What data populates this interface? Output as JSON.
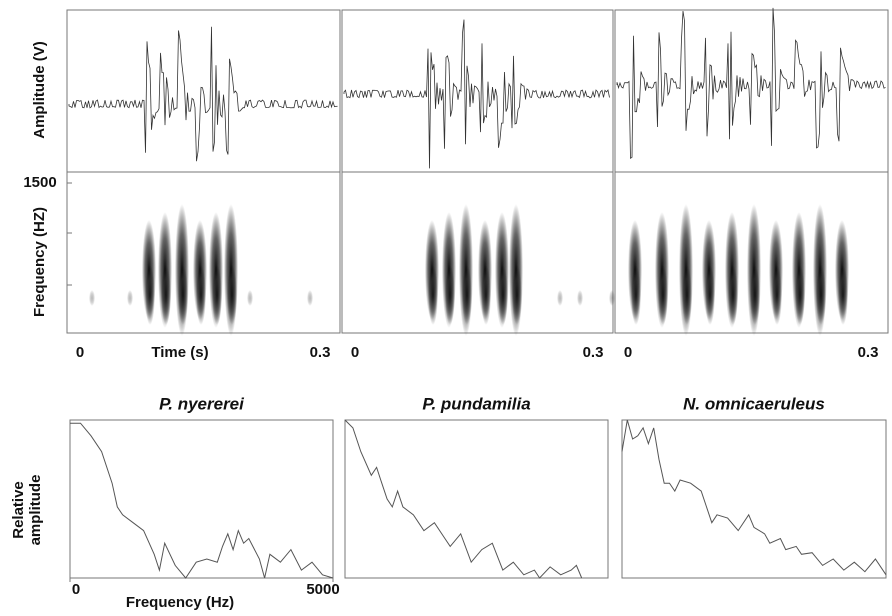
{
  "waveform": {
    "ylabel": "Amplitude (V)"
  },
  "spectrogram": {
    "ylabel": "Frequency (HZ)",
    "ylim": [
      0,
      1500
    ],
    "yticks": [
      1500
    ]
  },
  "time_axis": {
    "xlabel": "Time (s)",
    "columns": [
      {
        "xlim": [
          0,
          0.3
        ],
        "xticks": [
          0,
          0.3
        ]
      },
      {
        "xlim": [
          0,
          0.3
        ],
        "xticks": [
          0,
          0.3
        ]
      },
      {
        "xlim": [
          0,
          0.3
        ],
        "xticks": [
          0,
          0.3
        ]
      }
    ]
  },
  "spectrum_ylabel": "Relative amplitude",
  "chart_data": [
    {
      "type": "line",
      "title": "P. nyererei",
      "xlabel": "Frequency (Hz)",
      "xlim": [
        0,
        5000
      ],
      "xticks": [
        0,
        5000
      ],
      "ylim": [
        0,
        1
      ],
      "x": [
        0,
        200,
        400,
        600,
        800,
        900,
        1000,
        1200,
        1400,
        1600,
        1700,
        1800,
        2000,
        2200,
        2400,
        2600,
        2800,
        2900,
        3000,
        3100,
        3200,
        3300,
        3400,
        3600,
        3700,
        3800,
        4000,
        4200,
        4400,
        4600,
        4800,
        5000
      ],
      "series": [
        {
          "color": "#555555",
          "values": [
            0.98,
            0.98,
            0.9,
            0.8,
            0.6,
            0.45,
            0.4,
            0.35,
            0.3,
            0.15,
            0.05,
            0.22,
            0.08,
            0,
            0.1,
            0.12,
            0.1,
            0.2,
            0.28,
            0.18,
            0.3,
            0.22,
            0.25,
            0.12,
            0,
            0.15,
            0.1,
            0.18,
            0.05,
            0.1,
            0.02,
            0
          ]
        }
      ]
    },
    {
      "type": "line",
      "title": "P. pundamilia",
      "xlim": [
        0,
        5000
      ],
      "ylim": [
        0,
        1
      ],
      "x": [
        0,
        150,
        300,
        500,
        600,
        700,
        800,
        900,
        1000,
        1100,
        1300,
        1500,
        1700,
        1900,
        2000,
        2200,
        2400,
        2600,
        2800,
        3000,
        3200,
        3400,
        3600,
        3700,
        3900,
        4100,
        4300,
        4400,
        4500
      ],
      "series": [
        {
          "color": "#555555",
          "values": [
            1,
            0.95,
            0.8,
            0.65,
            0.7,
            0.6,
            0.5,
            0.45,
            0.55,
            0.45,
            0.4,
            0.3,
            0.35,
            0.25,
            0.2,
            0.28,
            0.1,
            0.18,
            0.22,
            0.05,
            0.1,
            0.02,
            0.05,
            0,
            0.07,
            0.02,
            0.05,
            0.08,
            0
          ]
        }
      ]
    },
    {
      "type": "line",
      "title": "N. omnicaeruleus",
      "xlim": [
        0,
        5000
      ],
      "ylim": [
        0,
        1
      ],
      "x": [
        0,
        100,
        200,
        300,
        400,
        500,
        600,
        700,
        800,
        900,
        1000,
        1100,
        1300,
        1500,
        1600,
        1700,
        1800,
        2000,
        2200,
        2400,
        2500,
        2700,
        2800,
        3000,
        3100,
        3300,
        3400,
        3600,
        3800,
        4000,
        4200,
        4400,
        4600,
        4800,
        5000
      ],
      "series": [
        {
          "color": "#555555",
          "values": [
            0.8,
            1,
            0.88,
            0.9,
            0.95,
            0.85,
            0.95,
            0.75,
            0.6,
            0.6,
            0.55,
            0.62,
            0.6,
            0.55,
            0.45,
            0.35,
            0.4,
            0.38,
            0.3,
            0.4,
            0.32,
            0.28,
            0.22,
            0.25,
            0.18,
            0.2,
            0.15,
            0.16,
            0.08,
            0.12,
            0.05,
            0.1,
            0.04,
            0.12,
            0.02
          ]
        }
      ]
    }
  ]
}
